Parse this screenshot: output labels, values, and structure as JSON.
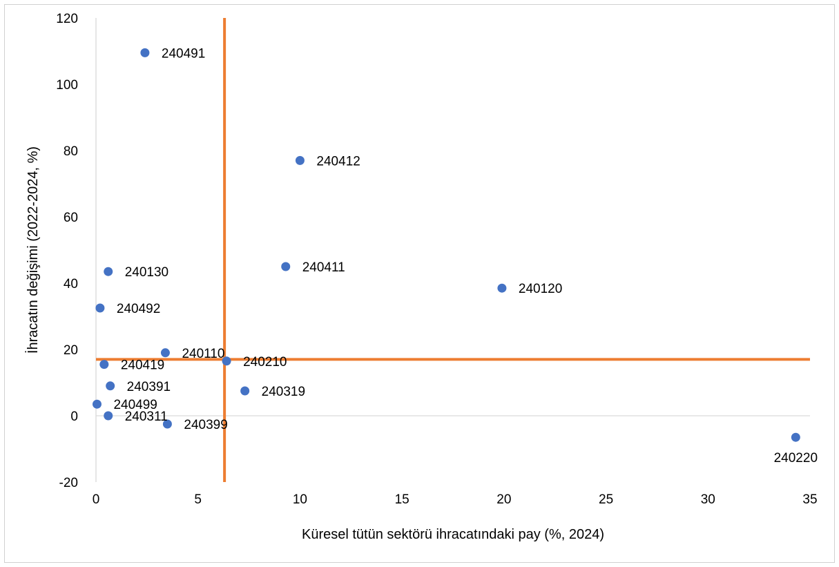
{
  "chart_data": {
    "type": "scatter",
    "title": "",
    "xlabel": "Küresel tütün sektörü ihracatındaki pay (%, 2024)",
    "ylabel": "İhracatın değişimi (2022-2024, %)",
    "xlim": [
      0,
      35
    ],
    "ylim": [
      -20,
      120
    ],
    "x_ticks": [
      0,
      5,
      10,
      15,
      20,
      25,
      30,
      35
    ],
    "y_ticks": [
      -20,
      0,
      20,
      40,
      60,
      80,
      100,
      120
    ],
    "grid": false,
    "legend": "none",
    "marker_color": "#4472C4",
    "reference_line_color": "#ED7D31",
    "reference_lines": {
      "x": 6.3,
      "y": 17
    },
    "points": [
      {
        "label": "240491",
        "x": 2.4,
        "y": 109.5
      },
      {
        "label": "240412",
        "x": 10.0,
        "y": 77.0
      },
      {
        "label": "240130",
        "x": 0.6,
        "y": 43.5
      },
      {
        "label": "240411",
        "x": 9.3,
        "y": 45.0
      },
      {
        "label": "240120",
        "x": 19.9,
        "y": 38.5
      },
      {
        "label": "240492",
        "x": 0.2,
        "y": 32.5
      },
      {
        "label": "240110",
        "x": 3.4,
        "y": 19.0
      },
      {
        "label": "240210",
        "x": 6.4,
        "y": 16.5
      },
      {
        "label": "240419",
        "x": 0.4,
        "y": 15.5
      },
      {
        "label": "240391",
        "x": 0.7,
        "y": 9.0
      },
      {
        "label": "240319",
        "x": 7.3,
        "y": 7.5
      },
      {
        "label": "240499",
        "x": 0.05,
        "y": 3.5
      },
      {
        "label": "240311",
        "x": 0.6,
        "y": 0.0
      },
      {
        "label": "240399",
        "x": 3.5,
        "y": -2.5
      },
      {
        "label": "240220",
        "x": 34.3,
        "y": -6.5
      }
    ]
  }
}
